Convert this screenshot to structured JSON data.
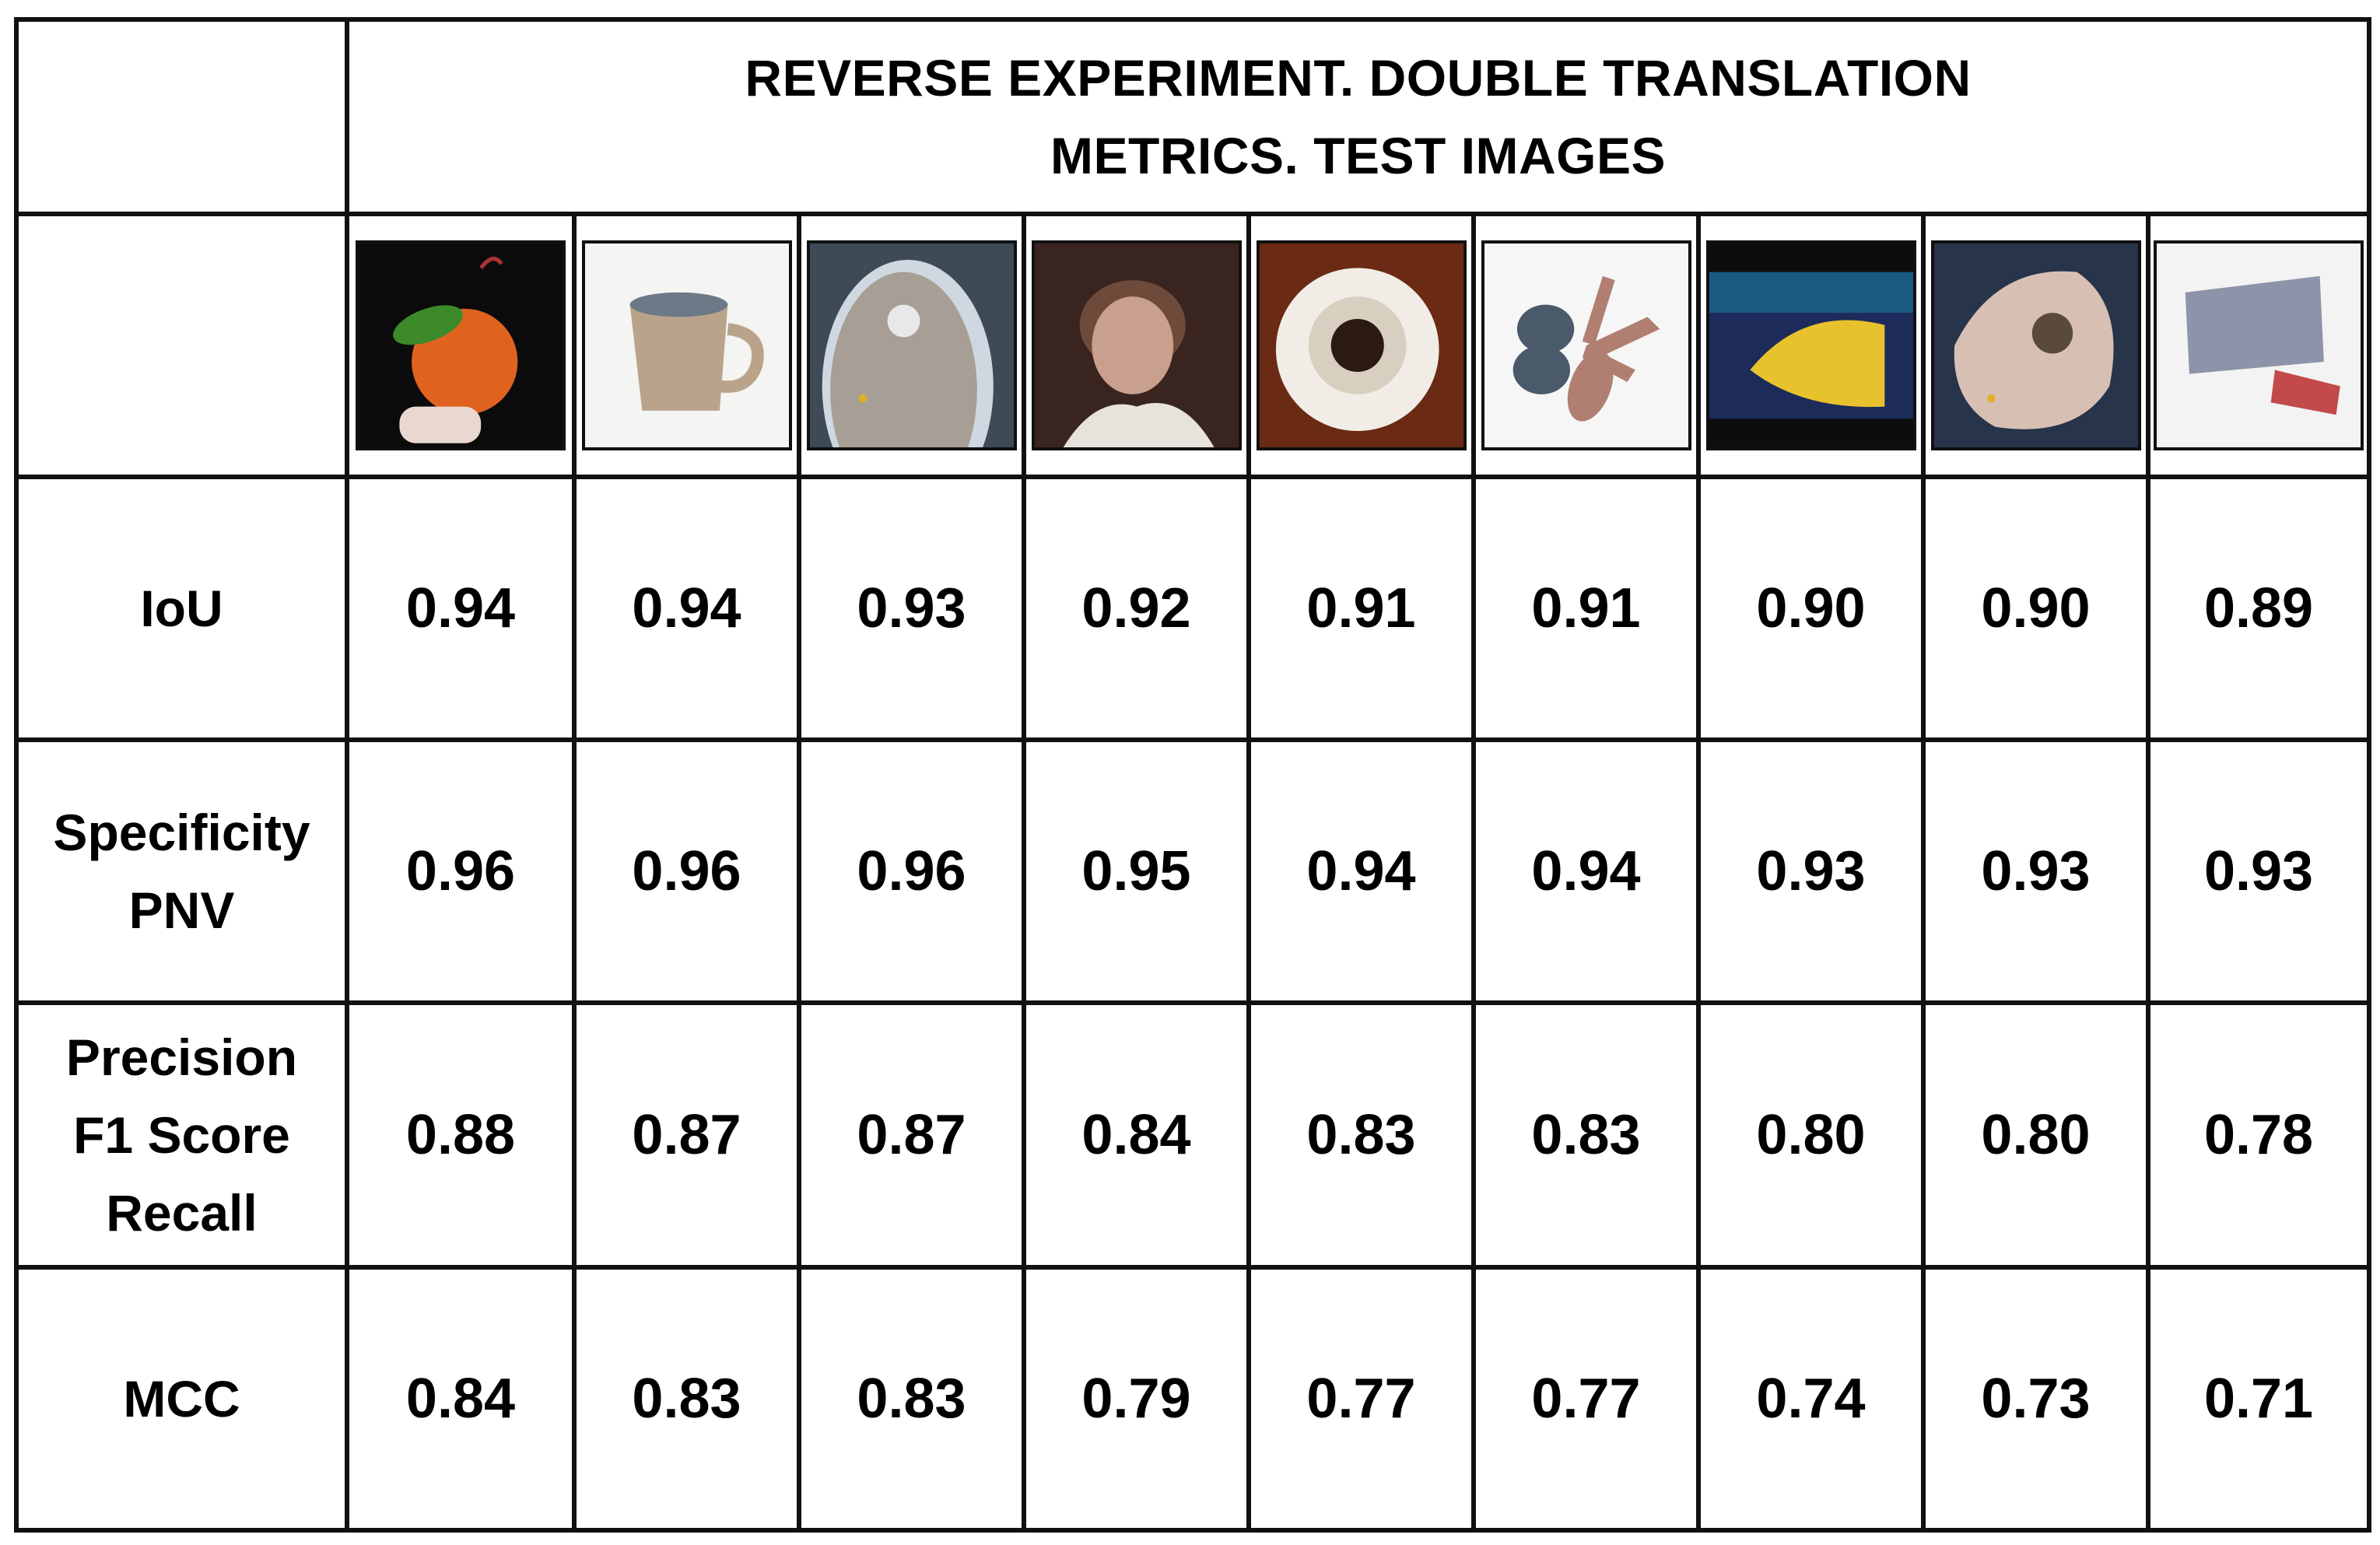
{
  "header": {
    "title_lines": [
      "REVERSE EXPERIMENT. DOUBLE TRANSLATION",
      "METRICS. TEST IMAGES"
    ]
  },
  "images": [
    {
      "icon": "apple-thumbnail",
      "bg": "#0b0b0b",
      "main": "#e0621f",
      "accent": "#3c8a2a"
    },
    {
      "icon": "mug-thumbnail",
      "bg": "#f4f4f2",
      "main": "#b9a48b",
      "accent": "#6b7a86"
    },
    {
      "icon": "plate-thumbnail",
      "bg": "#3e4a55",
      "main": "#a79f95",
      "accent": "#cfd8e0"
    },
    {
      "icon": "child-portrait-thumbnail",
      "bg": "#3a2420",
      "main": "#c9a08d",
      "accent": "#6d4a3a"
    },
    {
      "icon": "coffee-cup-thumbnail",
      "bg": "#6a2a14",
      "main": "#f1ede6",
      "accent": "#2b1a12"
    },
    {
      "icon": "flower-shapes-thumbnail",
      "bg": "#f6f6f6",
      "main": "#b07f72",
      "accent": "#4a5a6a"
    },
    {
      "icon": "fish-thumbnail",
      "bg": "#1d2b5a",
      "main": "#e8c22c",
      "accent": "#1a7a9a"
    },
    {
      "icon": "hand-thumbnail",
      "bg": "#27344a",
      "main": "#d8bfb4",
      "accent": "#5a4a3a"
    },
    {
      "icon": "box-thumbnail",
      "bg": "#f3f3f3",
      "main": "#8d93a8",
      "accent": "#c24a4a"
    }
  ],
  "rows": [
    {
      "metric_lines": [
        "IoU"
      ],
      "values": [
        "0.94",
        "0.94",
        "0.93",
        "0.92",
        "0.91",
        "0.91",
        "0.90",
        "0.90",
        "0.89"
      ]
    },
    {
      "metric_lines": [
        "Specificity",
        "PNV"
      ],
      "values": [
        "0.96",
        "0.96",
        "0.96",
        "0.95",
        "0.94",
        "0.94",
        "0.93",
        "0.93",
        "0.93"
      ]
    },
    {
      "metric_lines": [
        "Precision",
        "F1 Score",
        "Recall"
      ],
      "values": [
        "0.88",
        "0.87",
        "0.87",
        "0.84",
        "0.83",
        "0.83",
        "0.80",
        "0.80",
        "0.78"
      ]
    },
    {
      "metric_lines": [
        "MCC"
      ],
      "values": [
        "0.84",
        "0.83",
        "0.83",
        "0.79",
        "0.77",
        "0.77",
        "0.74",
        "0.73",
        "0.71"
      ]
    }
  ]
}
